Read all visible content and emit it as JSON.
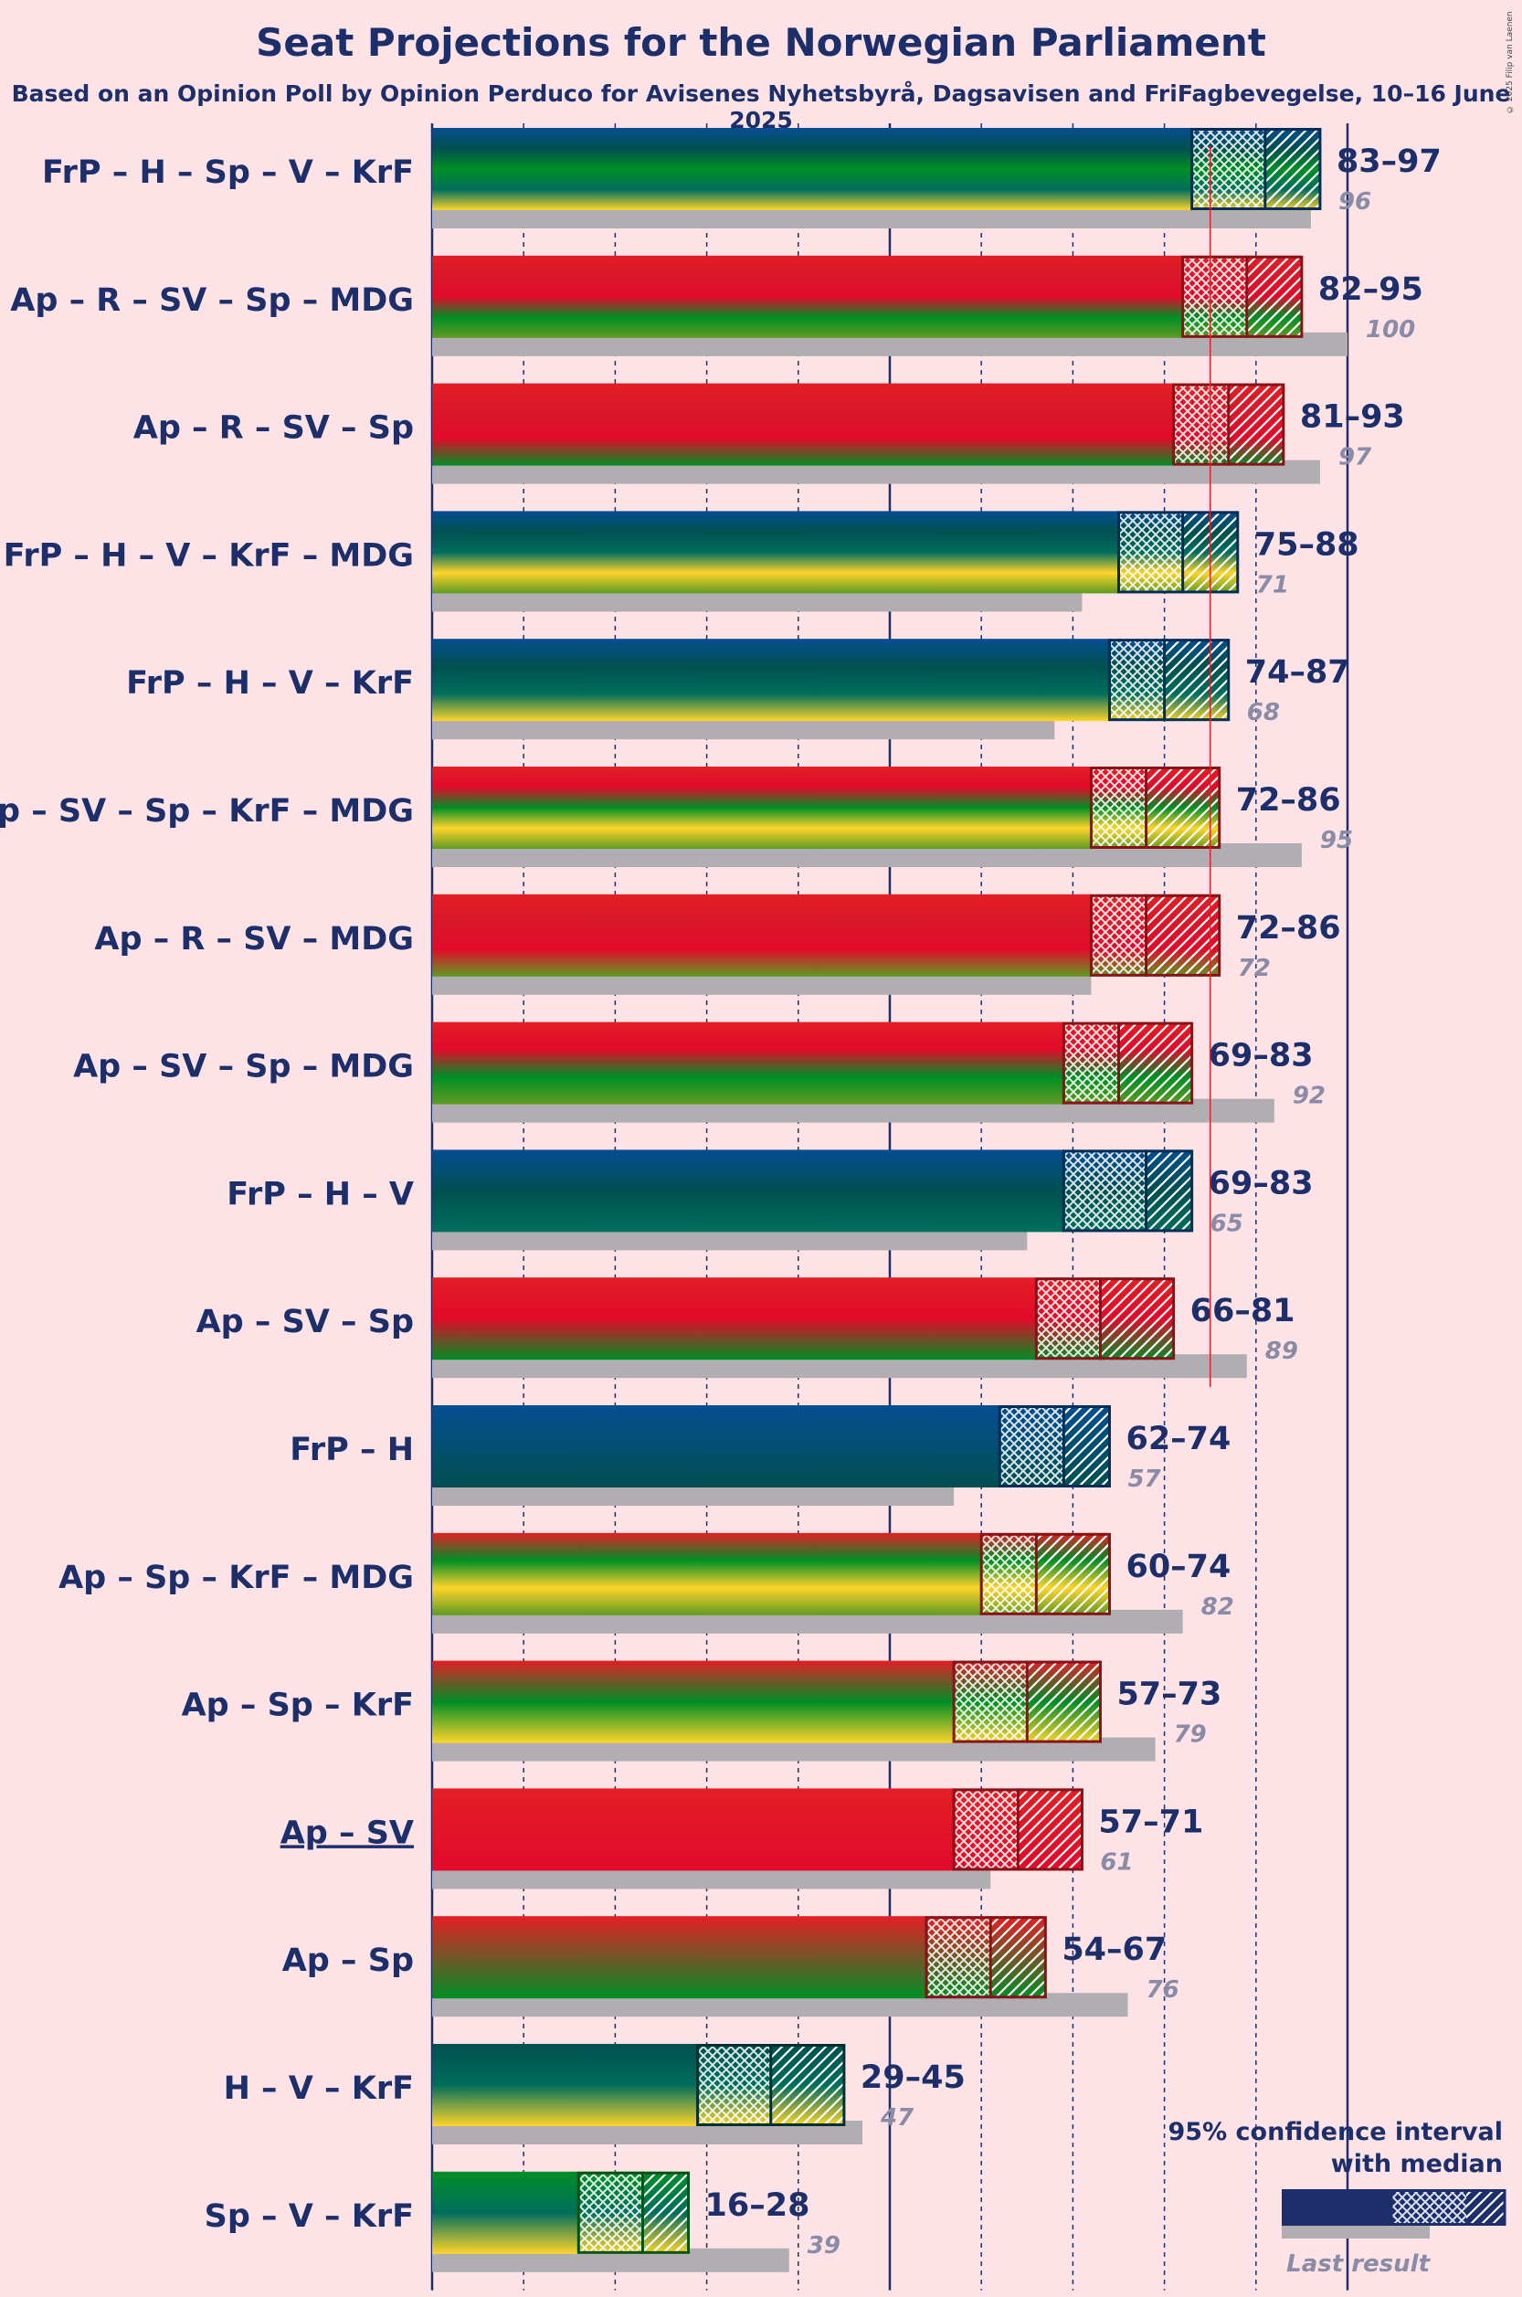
{
  "copyright": "© 2025 Filip van Laenen",
  "colors": {
    "FrP": "#064d92",
    "H": "#005050",
    "Sp": "#008e25",
    "V": "#006e5c",
    "KrF": "#ffd42b",
    "Ap": "#e31e25",
    "R": "#d9172a",
    "SV": "#e20a2a",
    "MDG": "#5f9a22",
    "last": "#b0aeb2",
    "majority": "#e31e25",
    "text": "#1c2f6b"
  },
  "chart_data": {
    "type": "bar",
    "title": "Seat Projections for the Norwegian Parliament",
    "subtitle": "Based on an Opinion Poll by Opinion Perduco for Avisenes Nyhetsbyrå, Dagsavisen and FriFagbevegelse, 10–16 June 2025",
    "majority": 85,
    "xlim": [
      0,
      169
    ],
    "grid_step": 10,
    "coalitions": [
      {
        "label": "FrP – H – Sp – V – KrF",
        "parties": [
          "FrP",
          "H",
          "Sp",
          "V",
          "KrF"
        ],
        "low": 83,
        "median": 91,
        "high": 97,
        "range": "83–97",
        "last": 96
      },
      {
        "label": "Ap – R – SV – Sp – MDG",
        "parties": [
          "Ap",
          "R",
          "SV",
          "Sp",
          "MDG"
        ],
        "low": 82,
        "median": 89,
        "high": 95,
        "range": "82–95",
        "last": 100
      },
      {
        "label": "Ap – R – SV – Sp",
        "parties": [
          "Ap",
          "R",
          "SV",
          "Sp"
        ],
        "low": 81,
        "median": 87,
        "high": 93,
        "range": "81–93",
        "last": 97
      },
      {
        "label": "FrP – H – V – KrF – MDG",
        "parties": [
          "FrP",
          "H",
          "V",
          "KrF",
          "MDG"
        ],
        "low": 75,
        "median": 82,
        "high": 88,
        "range": "75–88",
        "last": 71
      },
      {
        "label": "FrP – H – V – KrF",
        "parties": [
          "FrP",
          "H",
          "V",
          "KrF"
        ],
        "low": 74,
        "median": 80,
        "high": 87,
        "range": "74–87",
        "last": 68
      },
      {
        "label": "Ap – SV – Sp – KrF – MDG",
        "parties": [
          "Ap",
          "SV",
          "Sp",
          "KrF",
          "MDG"
        ],
        "low": 72,
        "median": 78,
        "high": 86,
        "range": "72–86",
        "last": 95
      },
      {
        "label": "Ap – R – SV – MDG",
        "parties": [
          "Ap",
          "R",
          "SV",
          "MDG"
        ],
        "low": 72,
        "median": 78,
        "high": 86,
        "range": "72–86",
        "last": 72
      },
      {
        "label": "Ap – SV – Sp – MDG",
        "parties": [
          "Ap",
          "SV",
          "Sp",
          "MDG"
        ],
        "low": 69,
        "median": 75,
        "high": 83,
        "range": "69–83",
        "last": 92
      },
      {
        "label": "FrP – H – V",
        "parties": [
          "FrP",
          "H",
          "V"
        ],
        "low": 69,
        "median": 78,
        "high": 83,
        "range": "69–83",
        "last": 65
      },
      {
        "label": "Ap – SV – Sp",
        "parties": [
          "Ap",
          "SV",
          "Sp"
        ],
        "low": 66,
        "median": 73,
        "high": 81,
        "range": "66–81",
        "last": 89
      },
      {
        "label": "FrP – H",
        "parties": [
          "FrP",
          "H"
        ],
        "low": 62,
        "median": 69,
        "high": 74,
        "range": "62–74",
        "last": 57
      },
      {
        "label": "Ap – Sp – KrF – MDG",
        "parties": [
          "Ap",
          "Sp",
          "KrF",
          "MDG"
        ],
        "low": 60,
        "median": 66,
        "high": 74,
        "range": "60–74",
        "last": 82
      },
      {
        "label": "Ap – Sp – KrF",
        "parties": [
          "Ap",
          "Sp",
          "KrF"
        ],
        "low": 57,
        "median": 65,
        "high": 73,
        "range": "57–73",
        "last": 79
      },
      {
        "label": "Ap – SV",
        "parties": [
          "Ap",
          "SV"
        ],
        "low": 57,
        "median": 64,
        "high": 71,
        "range": "57–71",
        "last": 61,
        "underline": true
      },
      {
        "label": "Ap – Sp",
        "parties": [
          "Ap",
          "Sp"
        ],
        "low": 54,
        "median": 61,
        "high": 67,
        "range": "54–67",
        "last": 76
      },
      {
        "label": "H – V – KrF",
        "parties": [
          "H",
          "V",
          "KrF"
        ],
        "low": 29,
        "median": 37,
        "high": 45,
        "range": "29–45",
        "last": 47
      },
      {
        "label": "Sp – V – KrF",
        "parties": [
          "Sp",
          "V",
          "KrF"
        ],
        "low": 16,
        "median": 23,
        "high": 28,
        "range": "16–28",
        "last": 39
      }
    ]
  },
  "legend": {
    "line1": "95% confidence interval",
    "line2": "with median",
    "last_label": "Last result"
  }
}
